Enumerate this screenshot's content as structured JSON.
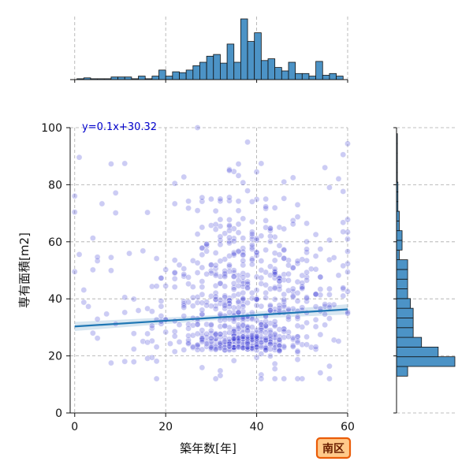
{
  "chart_data": {
    "type": "scatter",
    "xlabel": "築年数[年]",
    "ylabel": "専有面積[m2]",
    "xlim": [
      -1,
      60
    ],
    "ylim": [
      0,
      100
    ],
    "x_ticks": [
      0,
      20,
      40,
      60
    ],
    "y_ticks": [
      0,
      20,
      40,
      60,
      80,
      100
    ],
    "grid": true,
    "regression": {
      "label": "y=0.1x+30.32",
      "slope": 0.1,
      "intercept": 30.32,
      "x_range": [
        0,
        60
      ],
      "ci_halfwidth": [
        1.6,
        0.9,
        1.8
      ]
    },
    "badge": "南区",
    "marginal_x_hist": {
      "bin_width": 1.5,
      "bins": [
        {
          "x0": 0.5,
          "count": 1
        },
        {
          "x0": 2.0,
          "count": 2
        },
        {
          "x0": 3.5,
          "count": 1
        },
        {
          "x0": 5.0,
          "count": 1
        },
        {
          "x0": 6.5,
          "count": 1
        },
        {
          "x0": 8.0,
          "count": 3
        },
        {
          "x0": 9.5,
          "count": 3
        },
        {
          "x0": 11.0,
          "count": 3
        },
        {
          "x0": 12.5,
          "count": 1
        },
        {
          "x0": 14.0,
          "count": 4
        },
        {
          "x0": 15.5,
          "count": 1
        },
        {
          "x0": 17.0,
          "count": 4
        },
        {
          "x0": 18.5,
          "count": 11
        },
        {
          "x0": 20.0,
          "count": 4
        },
        {
          "x0": 21.5,
          "count": 9
        },
        {
          "x0": 23.0,
          "count": 8
        },
        {
          "x0": 24.5,
          "count": 11
        },
        {
          "x0": 26.0,
          "count": 16
        },
        {
          "x0": 27.5,
          "count": 20
        },
        {
          "x0": 29.0,
          "count": 27
        },
        {
          "x0": 30.5,
          "count": 29
        },
        {
          "x0": 32.0,
          "count": 19
        },
        {
          "x0": 33.5,
          "count": 41
        },
        {
          "x0": 35.0,
          "count": 20
        },
        {
          "x0": 36.5,
          "count": 70
        },
        {
          "x0": 38.0,
          "count": 44
        },
        {
          "x0": 39.5,
          "count": 54
        },
        {
          "x0": 41.0,
          "count": 22
        },
        {
          "x0": 42.5,
          "count": 24
        },
        {
          "x0": 44.0,
          "count": 14
        },
        {
          "x0": 45.5,
          "count": 10
        },
        {
          "x0": 47.0,
          "count": 20
        },
        {
          "x0": 48.5,
          "count": 7
        },
        {
          "x0": 50.0,
          "count": 7
        },
        {
          "x0": 51.5,
          "count": 4
        },
        {
          "x0": 53.0,
          "count": 21
        },
        {
          "x0": 54.5,
          "count": 5
        },
        {
          "x0": 56.0,
          "count": 7
        },
        {
          "x0": 57.5,
          "count": 4
        }
      ]
    },
    "marginal_y_hist": {
      "bin_width": 3.4,
      "bins": [
        {
          "y0": 12.9,
          "count": 4
        },
        {
          "y0": 16.3,
          "count": 21
        },
        {
          "y0": 19.7,
          "count": 15
        },
        {
          "y0": 23.1,
          "count": 9
        },
        {
          "y0": 26.5,
          "count": 6
        },
        {
          "y0": 29.9,
          "count": 6
        },
        {
          "y0": 33.3,
          "count": 6
        },
        {
          "y0": 36.7,
          "count": 5
        },
        {
          "y0": 40.1,
          "count": 4
        },
        {
          "y0": 43.5,
          "count": 4
        },
        {
          "y0": 46.9,
          "count": 4
        },
        {
          "y0": 50.3,
          "count": 4
        },
        {
          "y0": 53.7,
          "count": 1
        },
        {
          "y0": 57.1,
          "count": 2
        },
        {
          "y0": 60.5,
          "count": 2
        },
        {
          "y0": 63.9,
          "count": 1
        },
        {
          "y0": 67.3,
          "count": 1
        },
        {
          "y0": 70.7,
          "count": 0.5
        },
        {
          "y0": 74.1,
          "count": 0.5
        },
        {
          "y0": 77.5,
          "count": 0.5
        },
        {
          "y0": 80.9,
          "count": 0.3
        },
        {
          "y0": 84.3,
          "count": 0.3
        },
        {
          "y0": 87.7,
          "count": 0.3
        },
        {
          "y0": 91.1,
          "count": 0.3
        },
        {
          "y0": 94.5,
          "count": 0.3
        }
      ]
    },
    "point_clusters": [
      {
        "cx": 37,
        "cy": 22,
        "sx": 6,
        "sy": 5,
        "n": 260
      },
      {
        "cx": 36,
        "cy": 40,
        "sx": 8,
        "sy": 12,
        "n": 260
      },
      {
        "cx": 38,
        "cy": 60,
        "sx": 10,
        "sy": 12,
        "n": 90
      },
      {
        "cx": 20,
        "cy": 35,
        "sx": 10,
        "sy": 12,
        "n": 90
      },
      {
        "cx": 52,
        "cy": 42,
        "sx": 5,
        "sy": 14,
        "n": 80
      },
      {
        "cx": 30,
        "cy": 78,
        "sx": 18,
        "sy": 10,
        "n": 40
      }
    ]
  }
}
